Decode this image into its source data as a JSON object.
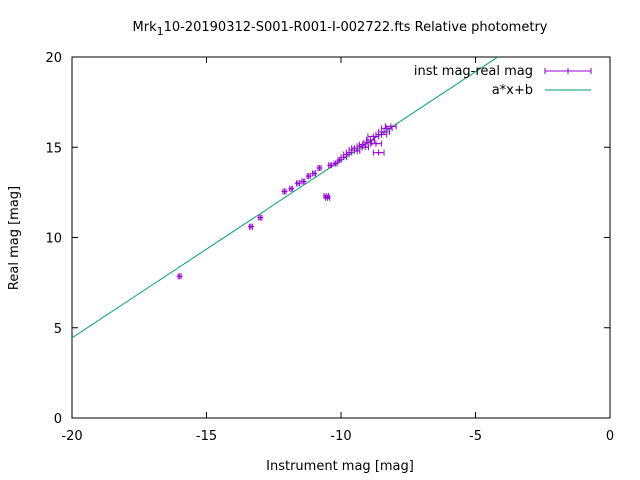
{
  "chart_data": {
    "type": "scatter",
    "title": {
      "prefix": "Mrk",
      "subscript": "1",
      "suffix": "10-20190312-S001-R001-I-002722.fts Relative photometry"
    },
    "xlabel": "Instrument mag [mag]",
    "ylabel": "Real mag [mag]",
    "xlim": [
      -20,
      0
    ],
    "ylim": [
      0,
      20
    ],
    "xticks": [
      -20,
      -15,
      -10,
      -5,
      0
    ],
    "yticks": [
      0,
      5,
      10,
      15,
      20
    ],
    "grid": false,
    "legend_position": "top-right",
    "series": [
      {
        "name": "inst mag-real mag",
        "kind": "points_with_x_errorbars",
        "color": "#9400d3",
        "points": [
          {
            "x": -16.0,
            "y": 7.85,
            "xerr": 0.05
          },
          {
            "x": -13.35,
            "y": 10.6,
            "xerr": 0.05
          },
          {
            "x": -13.0,
            "y": 11.1,
            "xerr": 0.05
          },
          {
            "x": -12.1,
            "y": 12.55,
            "xerr": 0.05
          },
          {
            "x": -11.85,
            "y": 12.7,
            "xerr": 0.05
          },
          {
            "x": -11.6,
            "y": 13.0,
            "xerr": 0.05
          },
          {
            "x": -11.4,
            "y": 13.1,
            "xerr": 0.05
          },
          {
            "x": -11.2,
            "y": 13.4,
            "xerr": 0.05
          },
          {
            "x": -11.0,
            "y": 13.55,
            "xerr": 0.05
          },
          {
            "x": -10.8,
            "y": 13.85,
            "xerr": 0.05
          },
          {
            "x": -10.55,
            "y": 12.3,
            "xerr": 0.08
          },
          {
            "x": -10.5,
            "y": 12.2,
            "xerr": 0.08
          },
          {
            "x": -10.4,
            "y": 14.0,
            "xerr": 0.05
          },
          {
            "x": -10.2,
            "y": 14.1,
            "xerr": 0.05
          },
          {
            "x": -10.05,
            "y": 14.3,
            "xerr": 0.05
          },
          {
            "x": -9.9,
            "y": 14.45,
            "xerr": 0.1
          },
          {
            "x": -9.8,
            "y": 14.6,
            "xerr": 0.1
          },
          {
            "x": -9.7,
            "y": 14.7,
            "xerr": 0.1
          },
          {
            "x": -9.6,
            "y": 14.85,
            "xerr": 0.1
          },
          {
            "x": -9.5,
            "y": 14.95,
            "xerr": 0.1
          },
          {
            "x": -9.4,
            "y": 14.8,
            "xerr": 0.1
          },
          {
            "x": -9.3,
            "y": 15.05,
            "xerr": 0.1
          },
          {
            "x": -9.2,
            "y": 15.15,
            "xerr": 0.12
          },
          {
            "x": -9.1,
            "y": 15.0,
            "xerr": 0.12
          },
          {
            "x": -9.0,
            "y": 15.25,
            "xerr": 0.15
          },
          {
            "x": -8.9,
            "y": 15.4,
            "xerr": 0.15
          },
          {
            "x": -8.8,
            "y": 15.6,
            "xerr": 0.2
          },
          {
            "x": -8.7,
            "y": 15.2,
            "xerr": 0.2
          },
          {
            "x": -8.6,
            "y": 14.7,
            "xerr": 0.2
          },
          {
            "x": -8.5,
            "y": 15.7,
            "xerr": 0.2
          },
          {
            "x": -8.4,
            "y": 15.85,
            "xerr": 0.2
          },
          {
            "x": -8.3,
            "y": 16.05,
            "xerr": 0.2
          },
          {
            "x": -8.15,
            "y": 16.15,
            "xerr": 0.2
          }
        ]
      },
      {
        "name": "a*x+b",
        "kind": "line",
        "color": "#009e73",
        "slope": 0.983,
        "intercept": 24.1
      }
    ]
  }
}
